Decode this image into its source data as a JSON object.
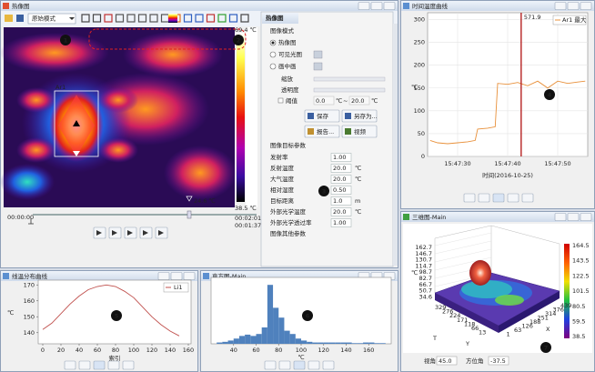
{
  "thermal_window": {
    "title": "热像图",
    "mode": "原始模式",
    "scale_max": "69.4 ℃",
    "scale_min": "38.5 ℃",
    "cursor_temp": "24.6 ℃",
    "area_label": "Ar1",
    "time_start": "00:00:00",
    "time_total": "00:02:01",
    "time_current": "00:01:37"
  },
  "panel": {
    "tab": "热像图",
    "mode_heading": "图像模式",
    "modes": [
      "热像图",
      "可见光图",
      "画中画"
    ],
    "zoom": "缩放",
    "opacity": "透明度",
    "threshold": "阈值",
    "threshold_low": "0.0",
    "threshold_low_unit": "℃",
    "tilde": "~",
    "threshold_high": "20.0",
    "threshold_high_unit": "℃",
    "buttons": [
      "保存",
      "另存为...",
      "报告...",
      "视频"
    ],
    "params_heading": "图像目标参数",
    "params": [
      {
        "label": "发射率",
        "value": "1.00"
      },
      {
        "label": "反射温度",
        "value": "20.0",
        "unit": "℃"
      },
      {
        "label": "大气温度",
        "value": "20.0",
        "unit": "℃"
      },
      {
        "label": "相对湿度",
        "value": "0.50"
      },
      {
        "label": "目标距离",
        "value": "1.0",
        "unit": "m"
      },
      {
        "label": "外部光学温度",
        "value": "20.0",
        "unit": "℃"
      },
      {
        "label": "外部光学透过率",
        "value": "1.00"
      }
    ],
    "other_heading": "图像其他参数"
  },
  "time_chart": {
    "title": "时间温度曲线",
    "type": "line",
    "xlabel": "时间(2016-10-25)",
    "ylabel": "℃",
    "legend": "Ar1 最大",
    "color": "#e8903a",
    "xlim": [
      24,
      56
    ],
    "ylim": [
      0,
      315
    ],
    "yticks": [
      0,
      50,
      100,
      150,
      200,
      250,
      300
    ],
    "xticks": [
      {
        "value": 30,
        "label": "15:47:30"
      },
      {
        "value": 40,
        "label": "15:47:40"
      },
      {
        "value": 50,
        "label": "15:47:50"
      }
    ],
    "marker": {
      "x": 42.7,
      "label": "571.9"
    },
    "x": [
      24.5,
      26,
      28,
      30,
      32,
      33.5,
      34,
      36,
      37.5,
      38,
      40,
      42,
      44,
      46,
      48,
      50,
      52,
      54,
      55.5
    ],
    "values": [
      35,
      30,
      28,
      30,
      32,
      35,
      60,
      62,
      65,
      160,
      158,
      162,
      155,
      165,
      150,
      165,
      160,
      163,
      165
    ]
  },
  "surface": {
    "title": "三维图-Main",
    "zlabel": "℃",
    "zticks": [
      "162.7",
      "146.7",
      "130.7",
      "114.7",
      "98.7",
      "82.7",
      "66.7",
      "50.7",
      "34.6"
    ],
    "colorbar_ticks": [
      "164.5",
      "143.5",
      "122.5",
      "101.5",
      "80.5",
      "59.5",
      "38.5"
    ],
    "y_ticks": [
      "329",
      "276",
      "224",
      "171",
      "118",
      "66",
      "13"
    ],
    "x_ticks": [
      "439",
      "376",
      "314",
      "251",
      "188",
      "126",
      "63",
      "1"
    ],
    "axis_t": "T",
    "axis_y": "Y",
    "axis_x": "X",
    "view_label": "视角",
    "view_value": "45.0",
    "azimuth_label": "方位角",
    "azimuth_value": "-37.5"
  },
  "line_chart": {
    "title": "线温分布曲线",
    "type": "line",
    "xlabel": "索引",
    "ylabel": "℃",
    "legend": "Li1",
    "color": "#c0504d",
    "xlim": [
      -5,
      163
    ],
    "ylim": [
      133,
      173
    ],
    "xticks": [
      0,
      20,
      40,
      60,
      80,
      100,
      120,
      140,
      160
    ],
    "yticks": [
      140,
      150,
      160,
      170
    ],
    "x": [
      0,
      10,
      20,
      30,
      40,
      50,
      60,
      70,
      80,
      90,
      100,
      110,
      120,
      130,
      140,
      150
    ],
    "values": [
      142,
      146,
      152,
      158,
      163,
      167,
      169,
      170,
      169,
      166,
      162,
      156,
      150,
      145,
      141,
      138
    ]
  },
  "histogram": {
    "title": "直方图-Main",
    "type": "histogram",
    "xlabel": "℃",
    "color": "#4f81bd",
    "xlim": [
      20,
      180
    ],
    "xticks": [
      40,
      60,
      80,
      100,
      120,
      140,
      160
    ],
    "bins": [
      25,
      30,
      35,
      40,
      45,
      50,
      55,
      60,
      65,
      70,
      75,
      80,
      85,
      90,
      95,
      100,
      105,
      110,
      115,
      120,
      125,
      130,
      135,
      140,
      145,
      150,
      155,
      160,
      165,
      170,
      175
    ],
    "counts": [
      2,
      3,
      5,
      8,
      12,
      14,
      12,
      15,
      25,
      90,
      55,
      40,
      20,
      15,
      8,
      5,
      3,
      2,
      2,
      2,
      2,
      2,
      2,
      2,
      1,
      1,
      2,
      2,
      1,
      1
    ]
  },
  "callouts": [
    "1",
    "2",
    "3",
    "4",
    "5",
    "6",
    "7"
  ]
}
